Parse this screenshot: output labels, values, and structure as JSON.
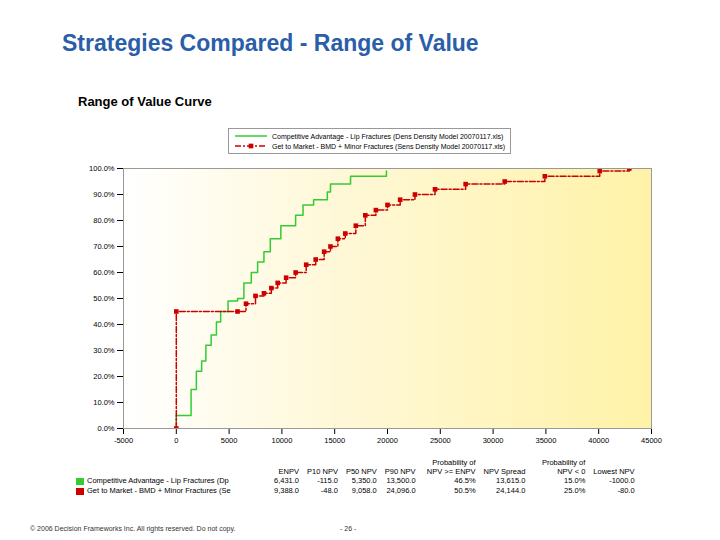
{
  "header": {
    "title": "Strategies Compared - Range of Value"
  },
  "chart_data": {
    "type": "line",
    "title": "Range of Value Curve",
    "xlim": [
      -5000,
      45000
    ],
    "xticks": [
      -5000,
      0,
      5000,
      10000,
      15000,
      20000,
      25000,
      30000,
      35000,
      40000,
      45000
    ],
    "ylim": [
      0,
      100
    ],
    "yticks": [
      {
        "value": 0,
        "label": "0.0%"
      },
      {
        "value": 10,
        "label": "10.0%"
      },
      {
        "value": 20,
        "label": "20.0%"
      },
      {
        "value": 30,
        "label": "30.0%"
      },
      {
        "value": 40,
        "label": "40.0%"
      },
      {
        "value": 50,
        "label": "50.0%"
      },
      {
        "value": 60,
        "label": "60.0%"
      },
      {
        "value": 70,
        "label": "70.0%"
      },
      {
        "value": 80,
        "label": "80.0%"
      },
      {
        "value": 90,
        "label": "90.0%"
      },
      {
        "value": 100,
        "label": "100.0%"
      }
    ],
    "grid": false,
    "legend": "top",
    "series": [
      {
        "name": "Competitive Advantage - Lip Fractures (Dens Density Model 20070117.xls)",
        "color": "#33cc33",
        "marker": "plus",
        "line_style": "solid",
        "x": [
          0,
          0,
          1400,
          1900,
          2400,
          2800,
          3300,
          3800,
          4200,
          4900,
          5800,
          6400,
          7100,
          7700,
          8300,
          8900,
          9900,
          11300,
          12000,
          13000,
          14300,
          14600,
          16500,
          19900
        ],
        "values": [
          0,
          5,
          15,
          22,
          26,
          32,
          36,
          41,
          45,
          49,
          50,
          56,
          60,
          64,
          68,
          73,
          78,
          82,
          86,
          88,
          91,
          94,
          97,
          99
        ]
      },
      {
        "name": "Get to Market - BMD + Minor Fractures (Sens Density Model 20070117.xls)",
        "color": "#cc0000",
        "marker": "square",
        "line_style": "dashed",
        "x": [
          0,
          0,
          5800,
          6600,
          7500,
          8300,
          9000,
          9600,
          10400,
          11300,
          12300,
          13200,
          14000,
          14600,
          15300,
          16000,
          17000,
          17900,
          18900,
          20000,
          21200,
          22600,
          24500,
          27400,
          31100,
          34900,
          40100,
          42900
        ],
        "values": [
          0,
          45,
          45,
          48,
          51,
          52,
          54,
          56,
          58,
          60,
          63,
          65,
          68,
          70,
          73,
          75,
          78,
          82,
          84,
          86,
          88,
          90,
          92,
          94,
          95,
          97,
          99,
          100
        ]
      }
    ]
  },
  "table": {
    "columns": [
      "ENPV",
      "P10 NPV",
      "P50 NPV",
      "P90 NPV",
      "Probability of NPV >= ENPV",
      "NPV Spread",
      "Probability of NPV < 0",
      "Lowest NPV"
    ],
    "rows": [
      {
        "label": "Competitive Advantage - Lip Fractures (Dp",
        "color": "#33cc33",
        "cells": [
          "6,431.0",
          "-115.0",
          "5,350.0",
          "13,500.0",
          "46.5%",
          "13,615.0",
          "15.0%",
          "-1000.0"
        ]
      },
      {
        "label": "Get to Market - BMD + Minor Fractures (Se",
        "color": "#cc0000",
        "cells": [
          "9,388.0",
          "-48.0",
          "9,058.0",
          "24,096.0",
          "50.5%",
          "24,144.0",
          "25.0%",
          "-80.0"
        ]
      }
    ]
  },
  "footer": {
    "left": "© 2006 Decision Frameworks Inc. All rights reserved. Do not copy.",
    "center": "- 26 -"
  }
}
